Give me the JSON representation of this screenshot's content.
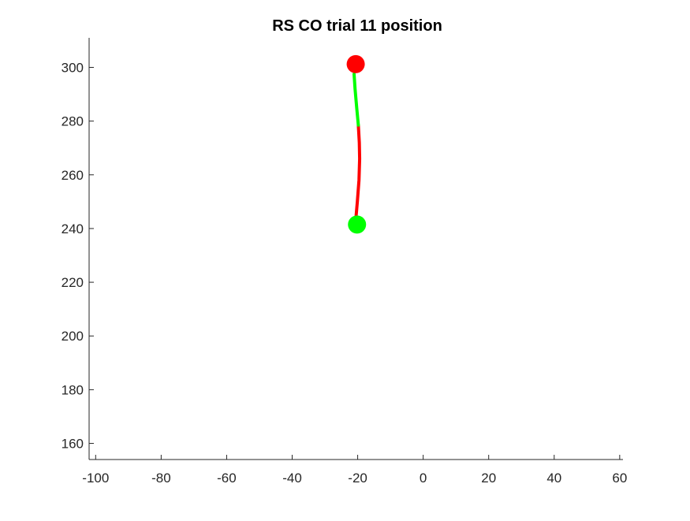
{
  "chart_data": {
    "type": "line",
    "title": "RS  CO trial 11 position",
    "xlabel": "",
    "ylabel": "",
    "xlim": [
      -102,
      61
    ],
    "ylim": [
      154,
      311
    ],
    "xticks": [
      -100,
      -80,
      -60,
      -40,
      -20,
      0,
      20,
      40,
      60
    ],
    "yticks": [
      160,
      180,
      200,
      220,
      240,
      260,
      280,
      300
    ],
    "grid": false,
    "box": false,
    "colors": {
      "segment_1": "#ff0000",
      "segment_2": "#00ff00",
      "start_marker": "#00ff00",
      "end_marker": "#ff0000",
      "axis": "#262626"
    },
    "series": [
      {
        "color": "#ff0000",
        "points": [
          {
            "x": -20.6,
            "y": 243
          },
          {
            "x": -20.1,
            "y": 250
          },
          {
            "x": -19.6,
            "y": 258
          },
          {
            "x": -19.4,
            "y": 266
          },
          {
            "x": -19.5,
            "y": 272
          },
          {
            "x": -19.8,
            "y": 278.5
          }
        ]
      },
      {
        "color": "#00ff00",
        "points": [
          {
            "x": -19.8,
            "y": 278.5
          },
          {
            "x": -20.3,
            "y": 285
          },
          {
            "x": -20.8,
            "y": 292
          },
          {
            "x": -21.1,
            "y": 297.5
          }
        ]
      }
    ],
    "markers": [
      {
        "role": "start",
        "x": -20.2,
        "y": 241.5,
        "color": "#00ff00"
      },
      {
        "role": "end",
        "x": -20.6,
        "y": 301.2,
        "color": "#ff0000"
      }
    ]
  }
}
